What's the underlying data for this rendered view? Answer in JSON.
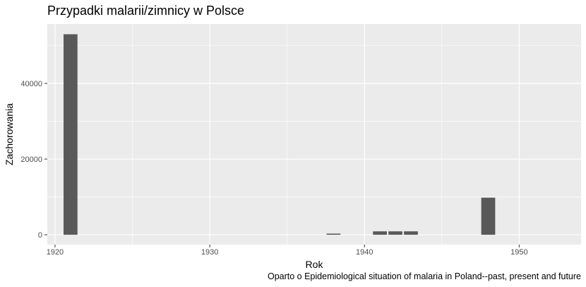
{
  "chart_data": {
    "type": "bar",
    "title": "Przypadki malarii/zimnicy w Polsce",
    "xlabel": "Rok",
    "ylabel": "Zachorowania",
    "caption": "Oparto o Epidemiological situation of malaria in Poland--past, present and future",
    "x": [
      1921,
      1938,
      1941,
      1942,
      1943,
      1948
    ],
    "values": [
      53000,
      300,
      900,
      900,
      900,
      9800
    ],
    "xlim": [
      1919.5,
      1954
    ],
    "ylim": [
      -2600,
      55700
    ],
    "xticks": [
      1920,
      1930,
      1940,
      1950
    ],
    "xtick_labels": [
      "1920",
      "1930",
      "1940",
      "1950"
    ],
    "yticks": [
      0,
      20000,
      40000
    ],
    "ytick_labels": [
      "0",
      "20000",
      "40000"
    ],
    "grid": true,
    "colors": {
      "panel": "#ebebeb",
      "grid": "#ffffff",
      "bar": "#595959",
      "tick_text": "#4d4d4d",
      "tick_mark": "#333333"
    }
  }
}
